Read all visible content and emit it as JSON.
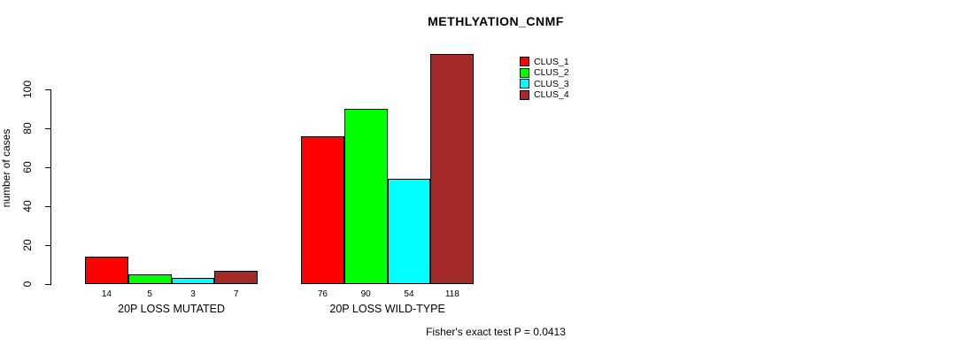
{
  "chart_data": {
    "type": "bar",
    "title": "METHLYATION_CNMF",
    "ylabel": "number of cases",
    "xlabel": "",
    "footnote": "Fisher's exact test P = 0.0413",
    "categories": [
      "20P LOSS MUTATED",
      "20P LOSS WILD-TYPE"
    ],
    "series": [
      {
        "name": "CLUS_1",
        "color": "#FF0000",
        "values": [
          14,
          76
        ]
      },
      {
        "name": "CLUS_2",
        "color": "#00FF00",
        "values": [
          5,
          90
        ]
      },
      {
        "name": "CLUS_3",
        "color": "#00FFFF",
        "values": [
          3,
          54
        ]
      },
      {
        "name": "CLUS_4",
        "color": "#A52A2A",
        "values": [
          7,
          118
        ]
      }
    ],
    "bar_value_labels": [
      [
        "14",
        "5",
        "3",
        "7"
      ],
      [
        "76",
        "90",
        "54",
        "118"
      ]
    ],
    "yticks": [
      0,
      20,
      40,
      60,
      80,
      100
    ],
    "ylim": [
      0,
      100
    ],
    "grid": false,
    "legend_position": "inside-top-right",
    "background_color": "#FFFFFF",
    "text_color": "#000000"
  }
}
